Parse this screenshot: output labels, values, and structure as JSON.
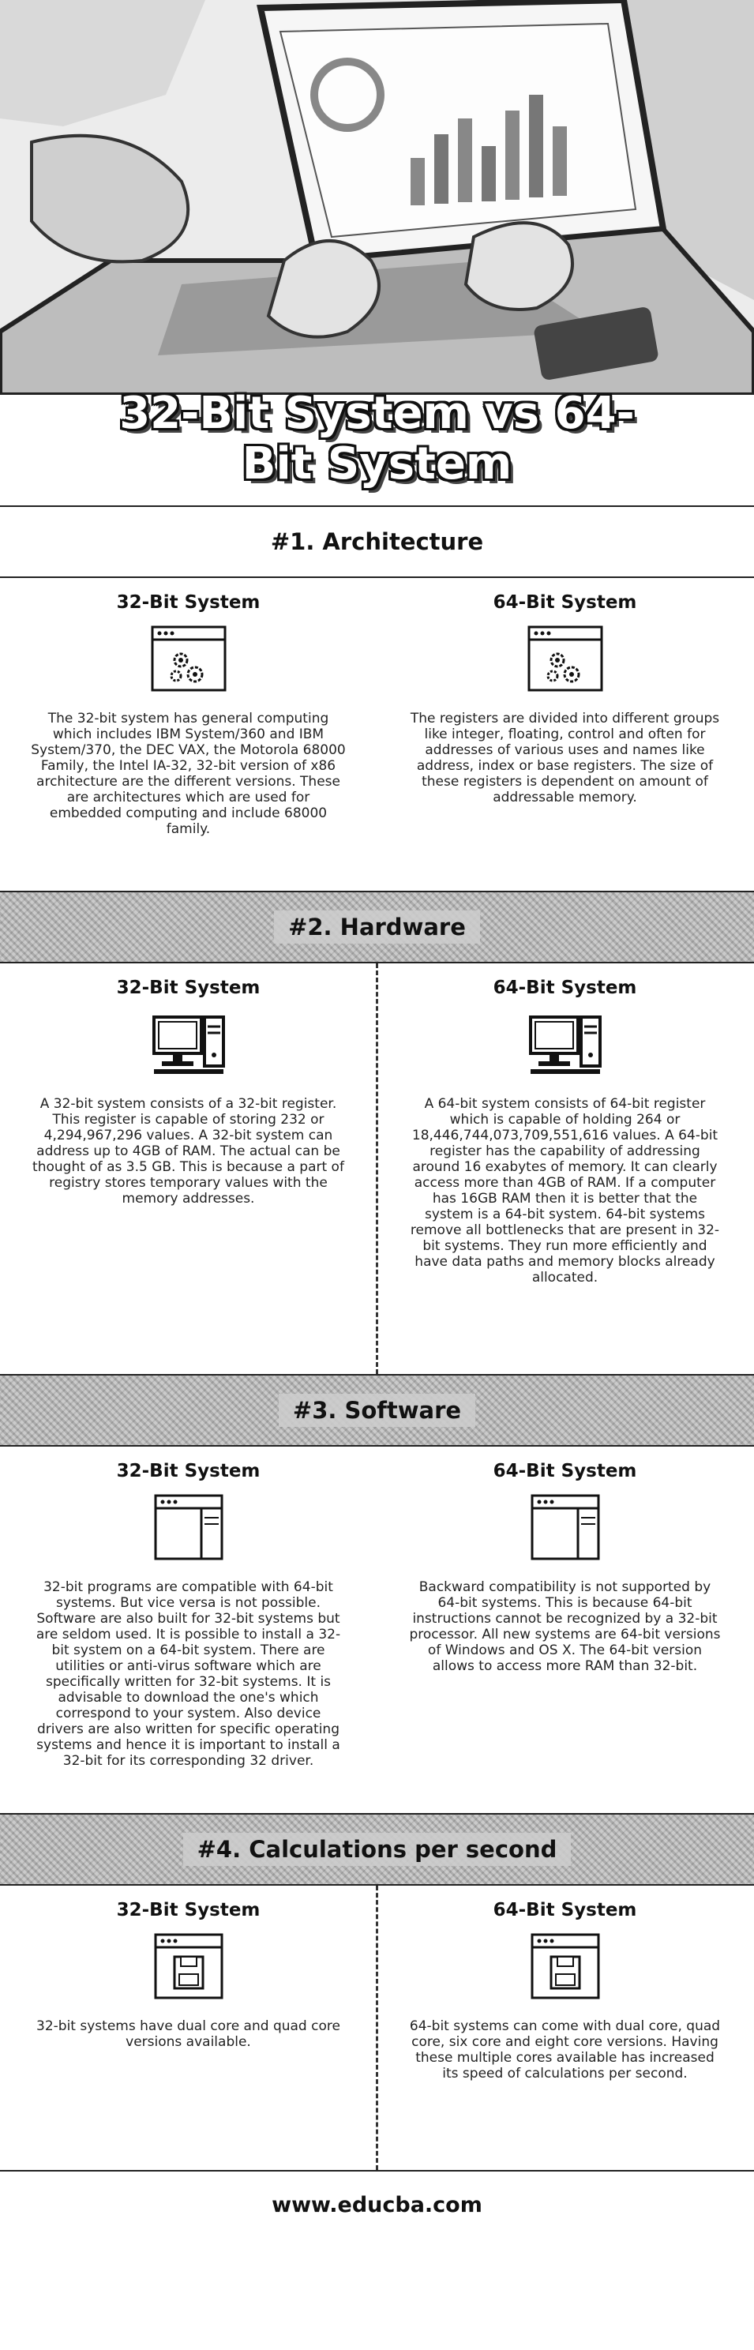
{
  "hero": {
    "title": "32-Bit System vs 64-Bit System"
  },
  "sections": [
    {
      "heading": "#1. Architecture",
      "left": {
        "title": "32-Bit System",
        "icon": "gears-window-icon",
        "text": "The 32-bit system has general computing which includes IBM System/360 and IBM System/370, the DEC VAX, the Motorola 68000 Family, the Intel IA-32, 32-bit version of x86 architecture are the different versions. These are architectures which are used for embedded computing and include 68000 family."
      },
      "right": {
        "title": "64-Bit System",
        "icon": "gears-window-icon",
        "text": "The registers are divided into different groups like integer, floating, control and often for addresses of various uses and names like address, index or base registers. The size of these registers is dependent on amount of addressable memory."
      }
    },
    {
      "heading": "#2. Hardware",
      "left": {
        "title": "32-Bit System",
        "icon": "desktop-computer-icon",
        "text": "A 32-bit system consists of a 32-bit register. This register is capable of storing 232 or 4,294,967,296 values. A 32-bit system can address up to 4GB of RAM. The actual can be thought of as 3.5 GB. This is because a part of registry stores temporary values with the memory addresses."
      },
      "right": {
        "title": "64-Bit System",
        "icon": "desktop-computer-icon",
        "text": "A 64-bit system consists of 64-bit register which is capable of holding 264 or 18,446,744,073,709,551,616 values. A 64-bit register has the capability of addressing around 16 exabytes of memory. It can clearly access more than 4GB of RAM. If a computer has 16GB RAM then it is better that the system is a 64-bit system. 64-bit systems remove all bottlenecks that are present in 32-bit systems. They run more efficiently and have data paths and memory blocks already allocated."
      }
    },
    {
      "heading": "#3. Software",
      "left": {
        "title": "32-Bit System",
        "icon": "app-window-icon",
        "text": "32-bit programs are compatible with 64-bit systems. But vice versa is not possible. Software are also built for 32-bit systems but are seldom used. It is possible to install a 32-bit system on a 64-bit system. There are utilities or anti-virus software which are specifically written for 32-bit systems. It is advisable to download the one's which correspond to your system. Also device drivers are also written for specific operating systems and hence it is important to install a 32-bit for its corresponding 32 driver."
      },
      "right": {
        "title": "64-Bit System",
        "icon": "app-window-icon",
        "text": "Backward compatibility is not supported by 64-bit systems. This is because 64-bit instructions cannot be recognized by a 32-bit processor. All new systems are 64-bit versions of Windows and OS X. The 64-bit version allows to access more RAM than 32-bit."
      }
    },
    {
      "heading": "#4. Calculations per second",
      "left": {
        "title": "32-Bit System",
        "icon": "floppy-window-icon",
        "text": "32-bit systems have dual core and quad core versions available."
      },
      "right": {
        "title": "64-Bit System",
        "icon": "floppy-window-icon",
        "text": "64-bit systems can come with dual core, quad core, six core and eight core versions. Having these multiple cores available has increased its speed of calculations per second."
      }
    }
  ],
  "footer": {
    "url": "www.educba.com"
  }
}
